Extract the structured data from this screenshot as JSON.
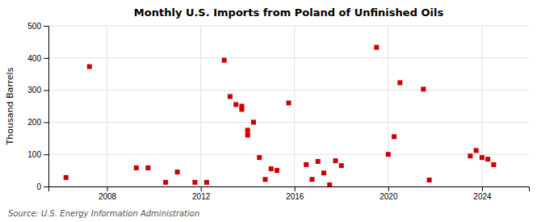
{
  "chart_data": {
    "type": "scatter",
    "title": "Monthly U.S. Imports from Poland of Unfinished Oils",
    "ylabel": "Thousand Barrels",
    "annotation": "Source: U.S. Energy Information Administration",
    "color": "#cc0000",
    "marker": "square",
    "grid": true,
    "xlim": [
      2005.5,
      2026.0
    ],
    "ylim": [
      0,
      500
    ],
    "xticks": [
      2008,
      2012,
      2016,
      2020,
      2024
    ],
    "yticks": [
      0,
      100,
      200,
      300,
      400,
      500
    ],
    "x": [
      2006.25,
      2007.25,
      2009.25,
      2009.75,
      2010.5,
      2011.0,
      2011.75,
      2012.25,
      2013.0,
      2013.25,
      2013.5,
      2013.75,
      2013.75,
      2014.0,
      2014.0,
      2014.25,
      2014.5,
      2014.75,
      2015.0,
      2015.25,
      2015.75,
      2016.5,
      2016.75,
      2017.0,
      2017.25,
      2017.5,
      2017.75,
      2018.0,
      2019.5,
      2020.0,
      2020.25,
      2020.5,
      2021.5,
      2021.75,
      2023.5,
      2023.75,
      2024.0,
      2024.25,
      2024.5
    ],
    "values": [
      28,
      373,
      58,
      58,
      13,
      45,
      13,
      13,
      393,
      280,
      255,
      240,
      250,
      160,
      175,
      200,
      90,
      22,
      55,
      50,
      260,
      68,
      22,
      78,
      42,
      5,
      80,
      65,
      433,
      100,
      155,
      323,
      303,
      20,
      95,
      112,
      90,
      85,
      68
    ]
  }
}
